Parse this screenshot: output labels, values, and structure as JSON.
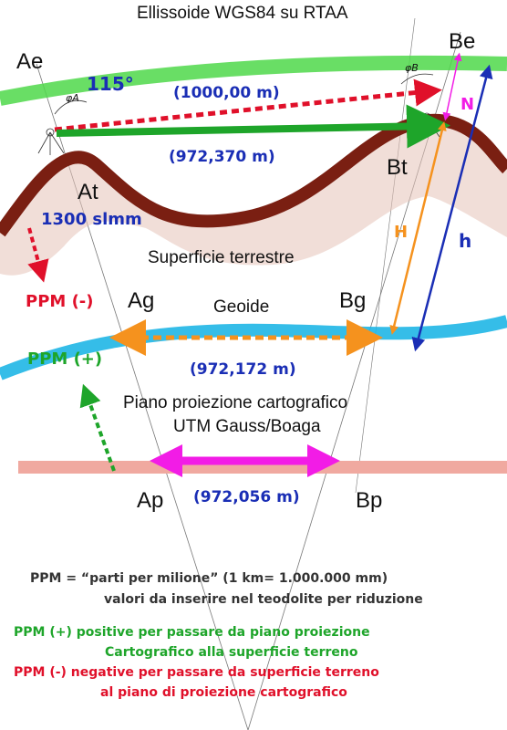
{
  "title": "Ellissoide WGS84 su RTAA",
  "labels": {
    "Ae": "Ae",
    "Be": "Be",
    "At": "At",
    "Bt": "Bt",
    "Ag": "Ag",
    "Bg": "Bg",
    "Ap": "Ap",
    "Bp": "Bp",
    "N": "N",
    "H": "H",
    "h": "h"
  },
  "angle": "115°",
  "elevation": "1300 slmm",
  "distances": {
    "ellipsoid": "(1000,00 m)",
    "terrain": "(972,370 m)",
    "geoid": "(972,172 m)",
    "plane": "(972,056 m)"
  },
  "surface_label": "Superficie terrestre",
  "geoid_label": "Geoide",
  "plane_label_line1": "Piano proiezione cartografico",
  "plane_label_line2": "UTM Gauss/Boaga",
  "ppm_minus": "PPM (-)",
  "ppm_plus": "PPM (+)",
  "notes": {
    "ppm_def_line1": "PPM =  “parti per milione” (1 km= 1.000.000 mm)",
    "ppm_def_line2": "valori da inserire nel teodolite per riduzione",
    "plus_line1": "PPM (+)  positive per passare da piano proiezione",
    "plus_line2": "Cartografico alla superficie terreno",
    "minus_line1": "PPM  (-)  negative per passare da superficie terreno",
    "minus_line2": "al piano di proiezione cartografico"
  },
  "colors": {
    "ellipsoid": "#4fd84a",
    "terrain": "#7a1f12",
    "geoid": "#1fb6e6",
    "plane": "#f0a9a0",
    "red": "#e0102a",
    "green": "#1ea52a",
    "blue": "#1a2eb5",
    "orange": "#f5921e",
    "magenta": "#f21ce6"
  }
}
